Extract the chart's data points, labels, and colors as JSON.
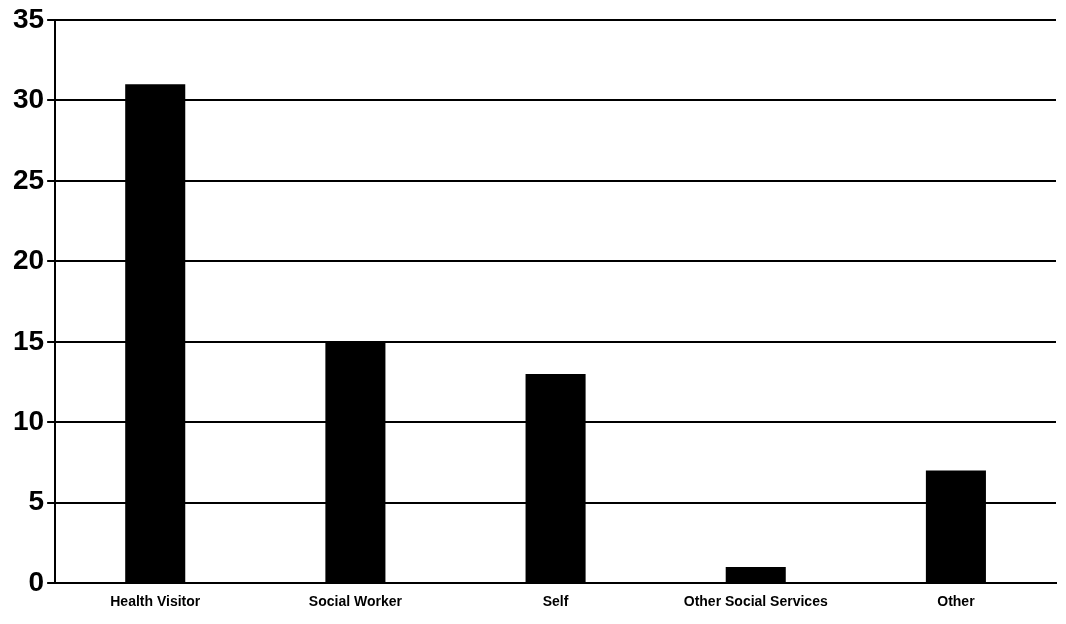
{
  "chart_data": {
    "type": "bar",
    "categories": [
      "Health Visitor",
      "Social Worker",
      "Self",
      "Other Social Services",
      "Other"
    ],
    "values": [
      31,
      15,
      13,
      1,
      7
    ],
    "color": "#000000",
    "ylim": [
      0,
      35
    ],
    "yticks": [
      0,
      5,
      10,
      15,
      20,
      25,
      30,
      35
    ],
    "grid": "y",
    "legend": false
  }
}
